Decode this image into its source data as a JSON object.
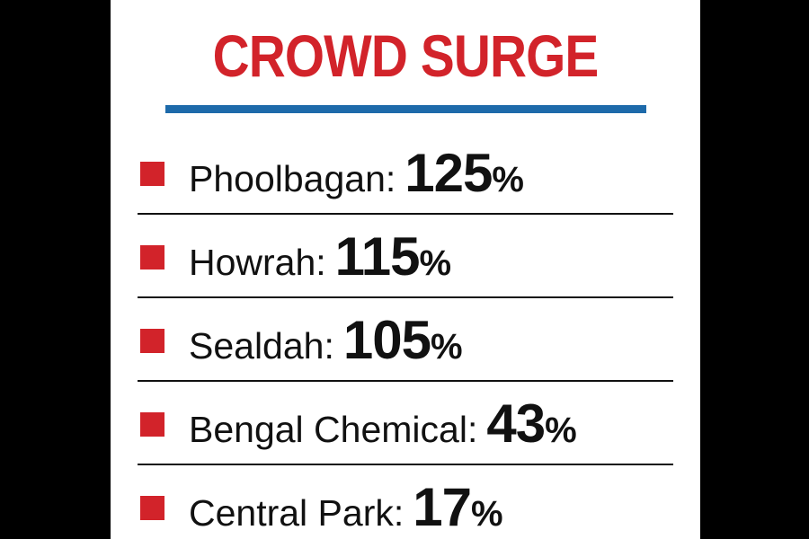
{
  "title": "CROWD SURGE",
  "colors": {
    "title": "#d2232a",
    "rule": "#1d6aaa",
    "bullet": "#d2232a",
    "text": "#111111"
  },
  "items": [
    {
      "label": "Phoolbagan:",
      "value": "125",
      "unit": "%"
    },
    {
      "label": "Howrah:",
      "value": "115",
      "unit": "%"
    },
    {
      "label": "Sealdah:",
      "value": "105",
      "unit": "%"
    },
    {
      "label": "Bengal Chemical:",
      "value": "43",
      "unit": "%"
    },
    {
      "label": "Central Park:",
      "value": "17",
      "unit": "%"
    }
  ]
}
